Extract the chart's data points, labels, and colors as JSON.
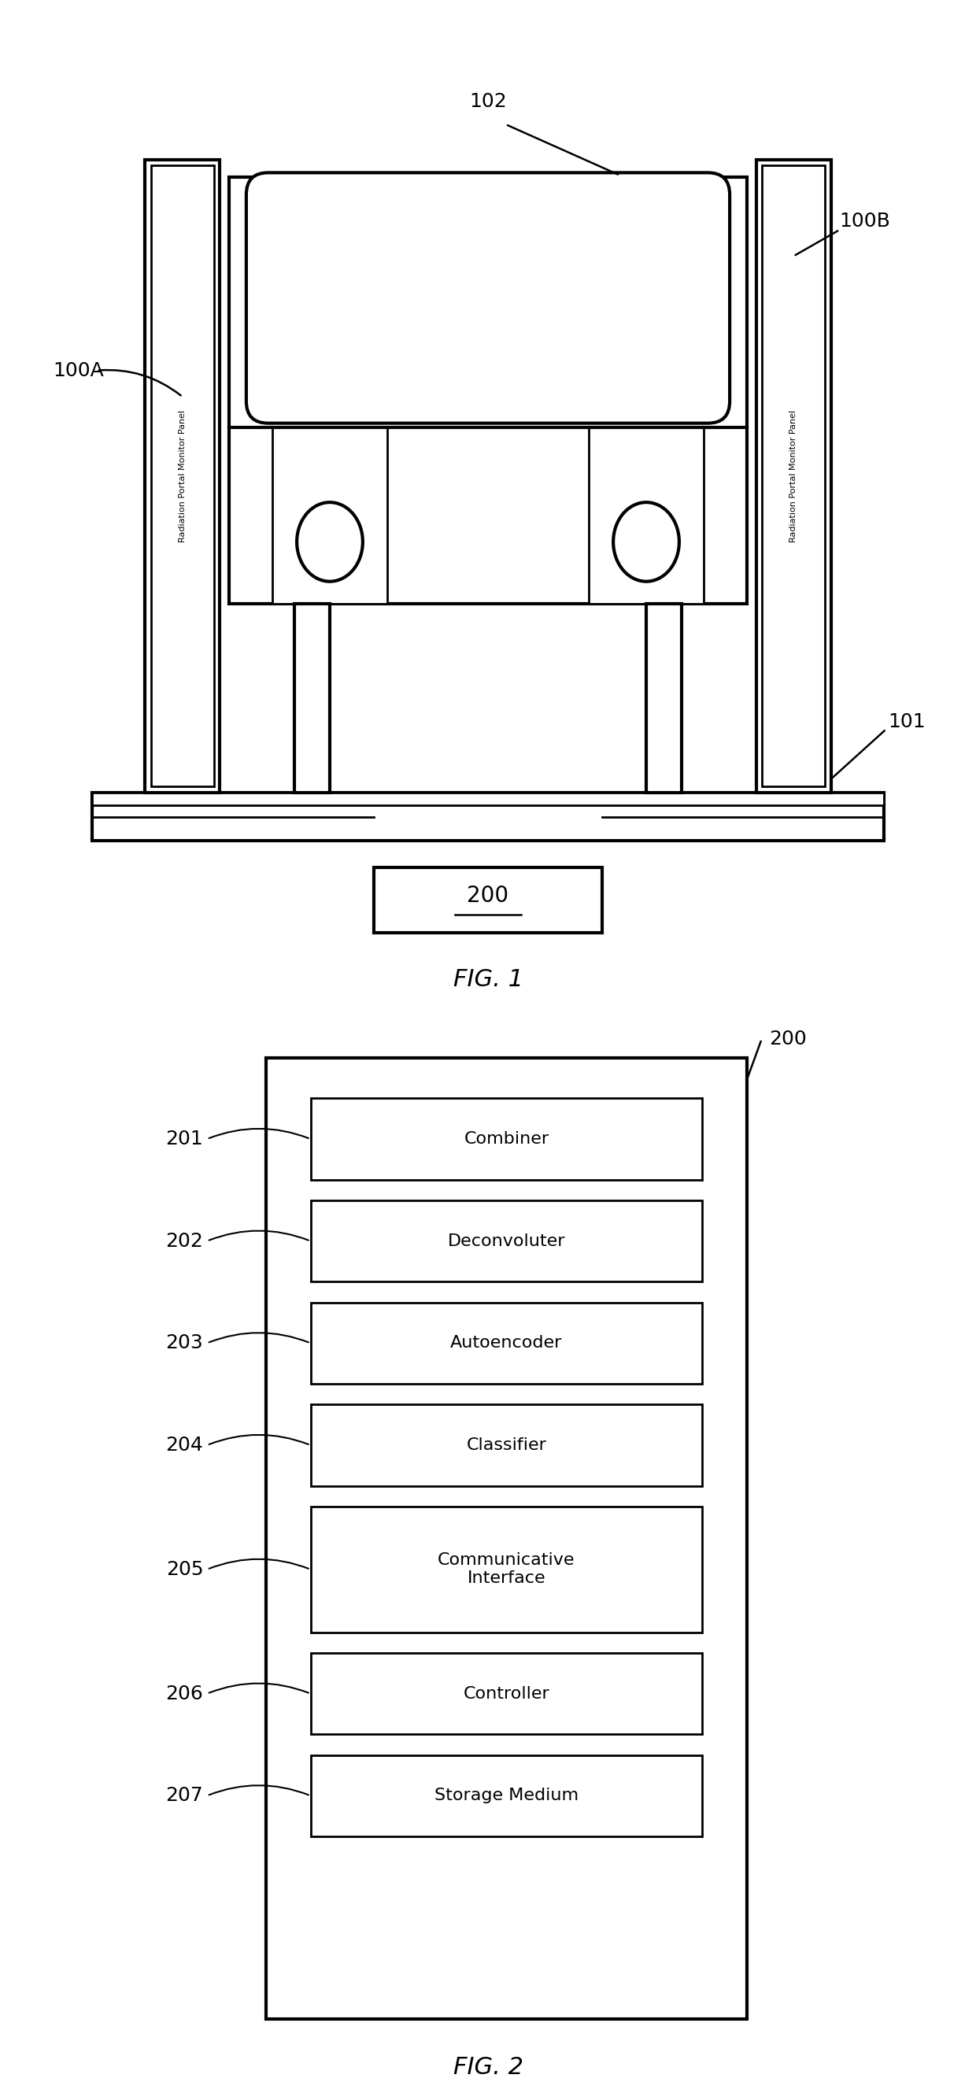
{
  "fig_width": 12.4,
  "fig_height": 26.59,
  "bg_color": "#ffffff",
  "line_color": "#000000",
  "fig1": {
    "title": "FIG. 1",
    "label_100A": "100A",
    "label_100B": "100B",
    "label_101": "101",
    "label_102": "102",
    "label_200": "200",
    "panel_text": "Radiation Portal Monitor Panel"
  },
  "fig2": {
    "title": "FIG. 2",
    "label_200": "200",
    "boxes": [
      {
        "label": "201",
        "text": "Combiner"
      },
      {
        "label": "202",
        "text": "Deconvoluter"
      },
      {
        "label": "203",
        "text": "Autoencoder"
      },
      {
        "label": "204",
        "text": "Classifier"
      },
      {
        "label": "205",
        "text": "Communicative\nInterface"
      },
      {
        "label": "206",
        "text": "Controller"
      },
      {
        "label": "207",
        "text": "Storage Medium"
      }
    ]
  }
}
